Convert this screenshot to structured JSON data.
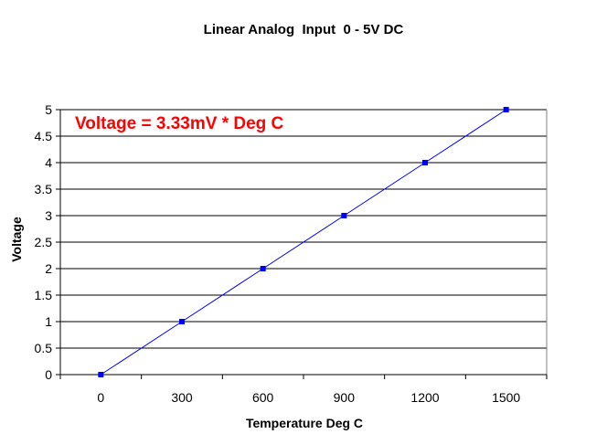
{
  "chart_data": {
    "type": "line",
    "title": "Linear Analog  Input  0 - 5V DC",
    "xlabel": "Temperature Deg C",
    "ylabel": "Voltage",
    "x_ticks": [
      "0",
      "300",
      "600",
      "900",
      "1200",
      "1500"
    ],
    "y_ticks": [
      "0",
      "0.5",
      "1",
      "1.5",
      "2",
      "2.5",
      "3",
      "3.5",
      "4",
      "4.5",
      "5"
    ],
    "ylim": [
      0,
      5
    ],
    "grid": true,
    "legend": "none",
    "annotation": "Voltage = 3.33mV * Deg C",
    "series": [
      {
        "categories": [
          "0",
          "300",
          "600",
          "900",
          "1200",
          "1500"
        ],
        "values": [
          0,
          1,
          2,
          3,
          4,
          5
        ]
      }
    ]
  },
  "colors": {
    "series": "#0000ff",
    "annotation": "#ff0000",
    "grid": "#000000"
  }
}
